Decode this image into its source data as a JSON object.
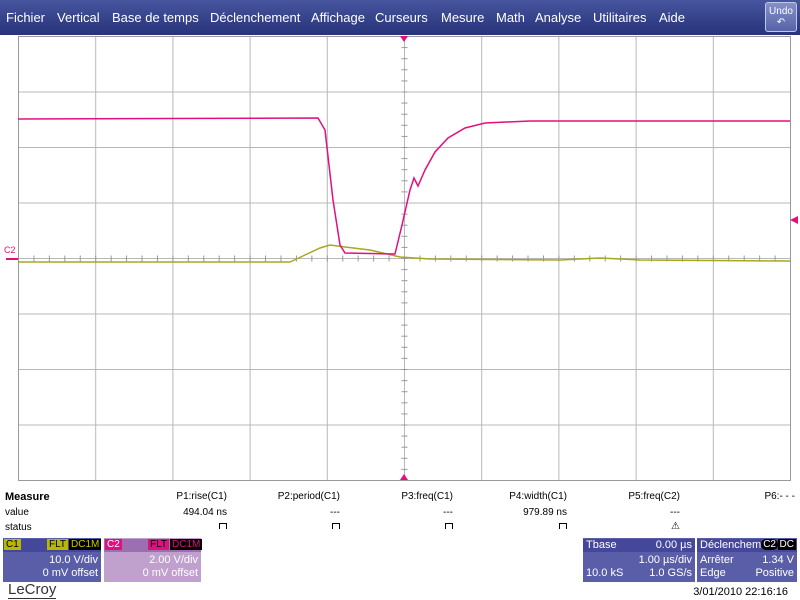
{
  "menu": {
    "items": [
      "Fichier",
      "Vertical",
      "Base de temps",
      "Déclenchement",
      "Affichage",
      "Curseurs",
      "Mesure",
      "Math",
      "Analyse",
      "Utilitaires",
      "Aide"
    ],
    "undo": "Undo"
  },
  "trace_label": "C2",
  "measure": {
    "title": "Measure",
    "row_labels": [
      "value",
      "status"
    ],
    "params": [
      "P1:rise(C1)",
      "P2:period(C1)",
      "P3:freq(C1)",
      "P4:width(C1)",
      "P5:freq(C2)",
      "P6:- - -"
    ],
    "values": [
      "494.04 ns",
      "---",
      "---",
      "979.89 ns",
      "---"
    ]
  },
  "channels": [
    {
      "name": "C1",
      "filter": "FLT",
      "coupling": "DC1M",
      "scale": "10.0 V/div",
      "offset": "0 mV offset"
    },
    {
      "name": "C2",
      "filter": "FLT",
      "coupling": "DC1M",
      "scale": "2.00 V/div",
      "offset": "0 mV offset"
    }
  ],
  "timebase": {
    "label": "Tbase",
    "delay": "0.00 µs",
    "scale": "1.00 µs/div",
    "samples": "10.0 kS",
    "rate": "1.0 GS/s"
  },
  "trigger": {
    "label": "Déclenchem",
    "source": "C2",
    "coupling": "DC",
    "mode": "Arrêter",
    "level": "1.34 V",
    "type": "Edge",
    "slope": "Positive"
  },
  "footer": {
    "brand": "LeCroy",
    "timestamp": "3/01/2010 22:16:16"
  }
}
